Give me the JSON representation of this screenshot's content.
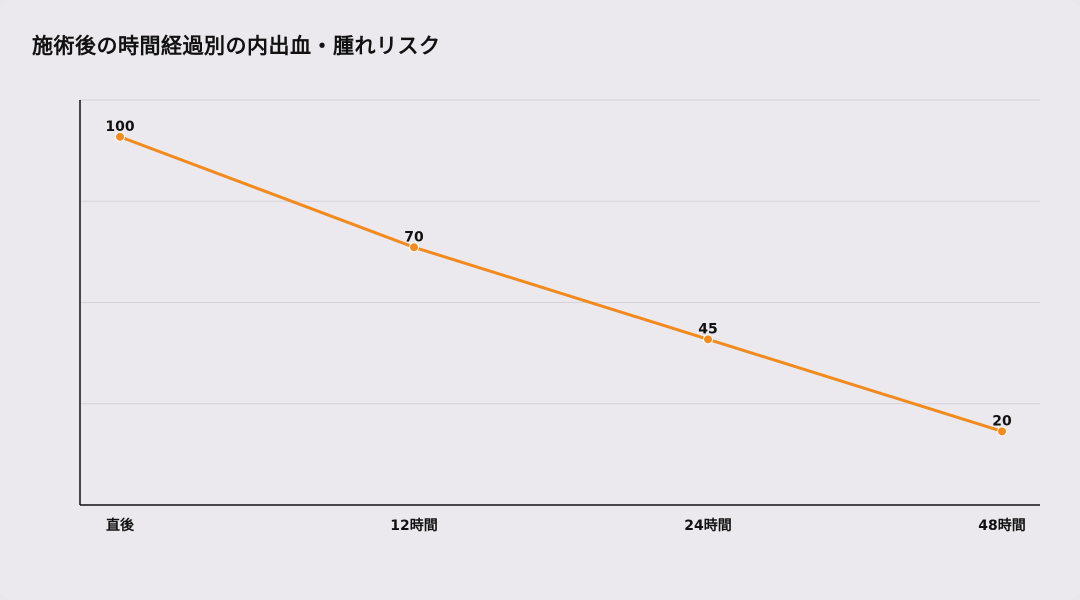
{
  "chart": {
    "title": "施術後の時間経過別の内出血・腫れリスク"
  },
  "colors": {
    "line": "#f28a1e",
    "grid": "#d6d4da",
    "axis": "#111111",
    "background": "#ebe9ee"
  },
  "chart_data": {
    "type": "line",
    "title": "施術後の時間経過別の内出血・腫れリスク",
    "categories": [
      "直後",
      "12時間",
      "24時間",
      "48時間"
    ],
    "series": [
      {
        "values": [
          100,
          70,
          45,
          20
        ]
      }
    ],
    "xlabel": "",
    "ylabel": "",
    "ylim": [
      0,
      110
    ],
    "grid": true,
    "data_labels": true,
    "legend": "none"
  }
}
